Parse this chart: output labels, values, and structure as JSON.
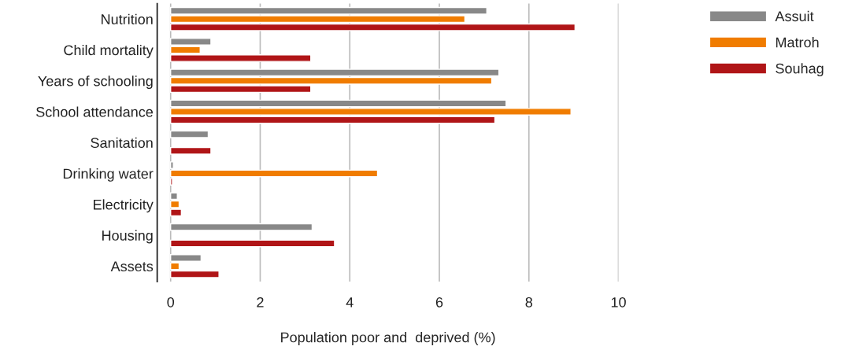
{
  "chart_data": {
    "type": "bar",
    "orientation": "horizontal",
    "xlabel": "Population poor and  deprived (%)",
    "categories": [
      "Nutrition",
      "Child mortality",
      "Years of schooling",
      "School attendance",
      "Sanitation",
      "Drinking water",
      "Electricity",
      "Housing",
      "Assets"
    ],
    "series": [
      {
        "name": "Assuit",
        "color": "#888888",
        "values": [
          7.06,
          0.9,
          7.33,
          7.49,
          0.84,
          0.06,
          0.15,
          3.16,
          0.68
        ]
      },
      {
        "name": "Matroh",
        "color": "#f07c00",
        "values": [
          6.57,
          0.66,
          7.17,
          8.94,
          null,
          4.62,
          0.19,
          null,
          0.19
        ]
      },
      {
        "name": "Souhag",
        "color": "#b01517",
        "values": [
          9.03,
          3.13,
          3.13,
          7.24,
          0.9,
          0.04,
          0.24,
          3.66,
          1.08
        ]
      }
    ],
    "xlim": [
      -0.3,
      10
    ],
    "xticks": [
      0,
      2,
      4,
      6,
      8,
      10
    ],
    "grid": "x",
    "legend": "right"
  }
}
